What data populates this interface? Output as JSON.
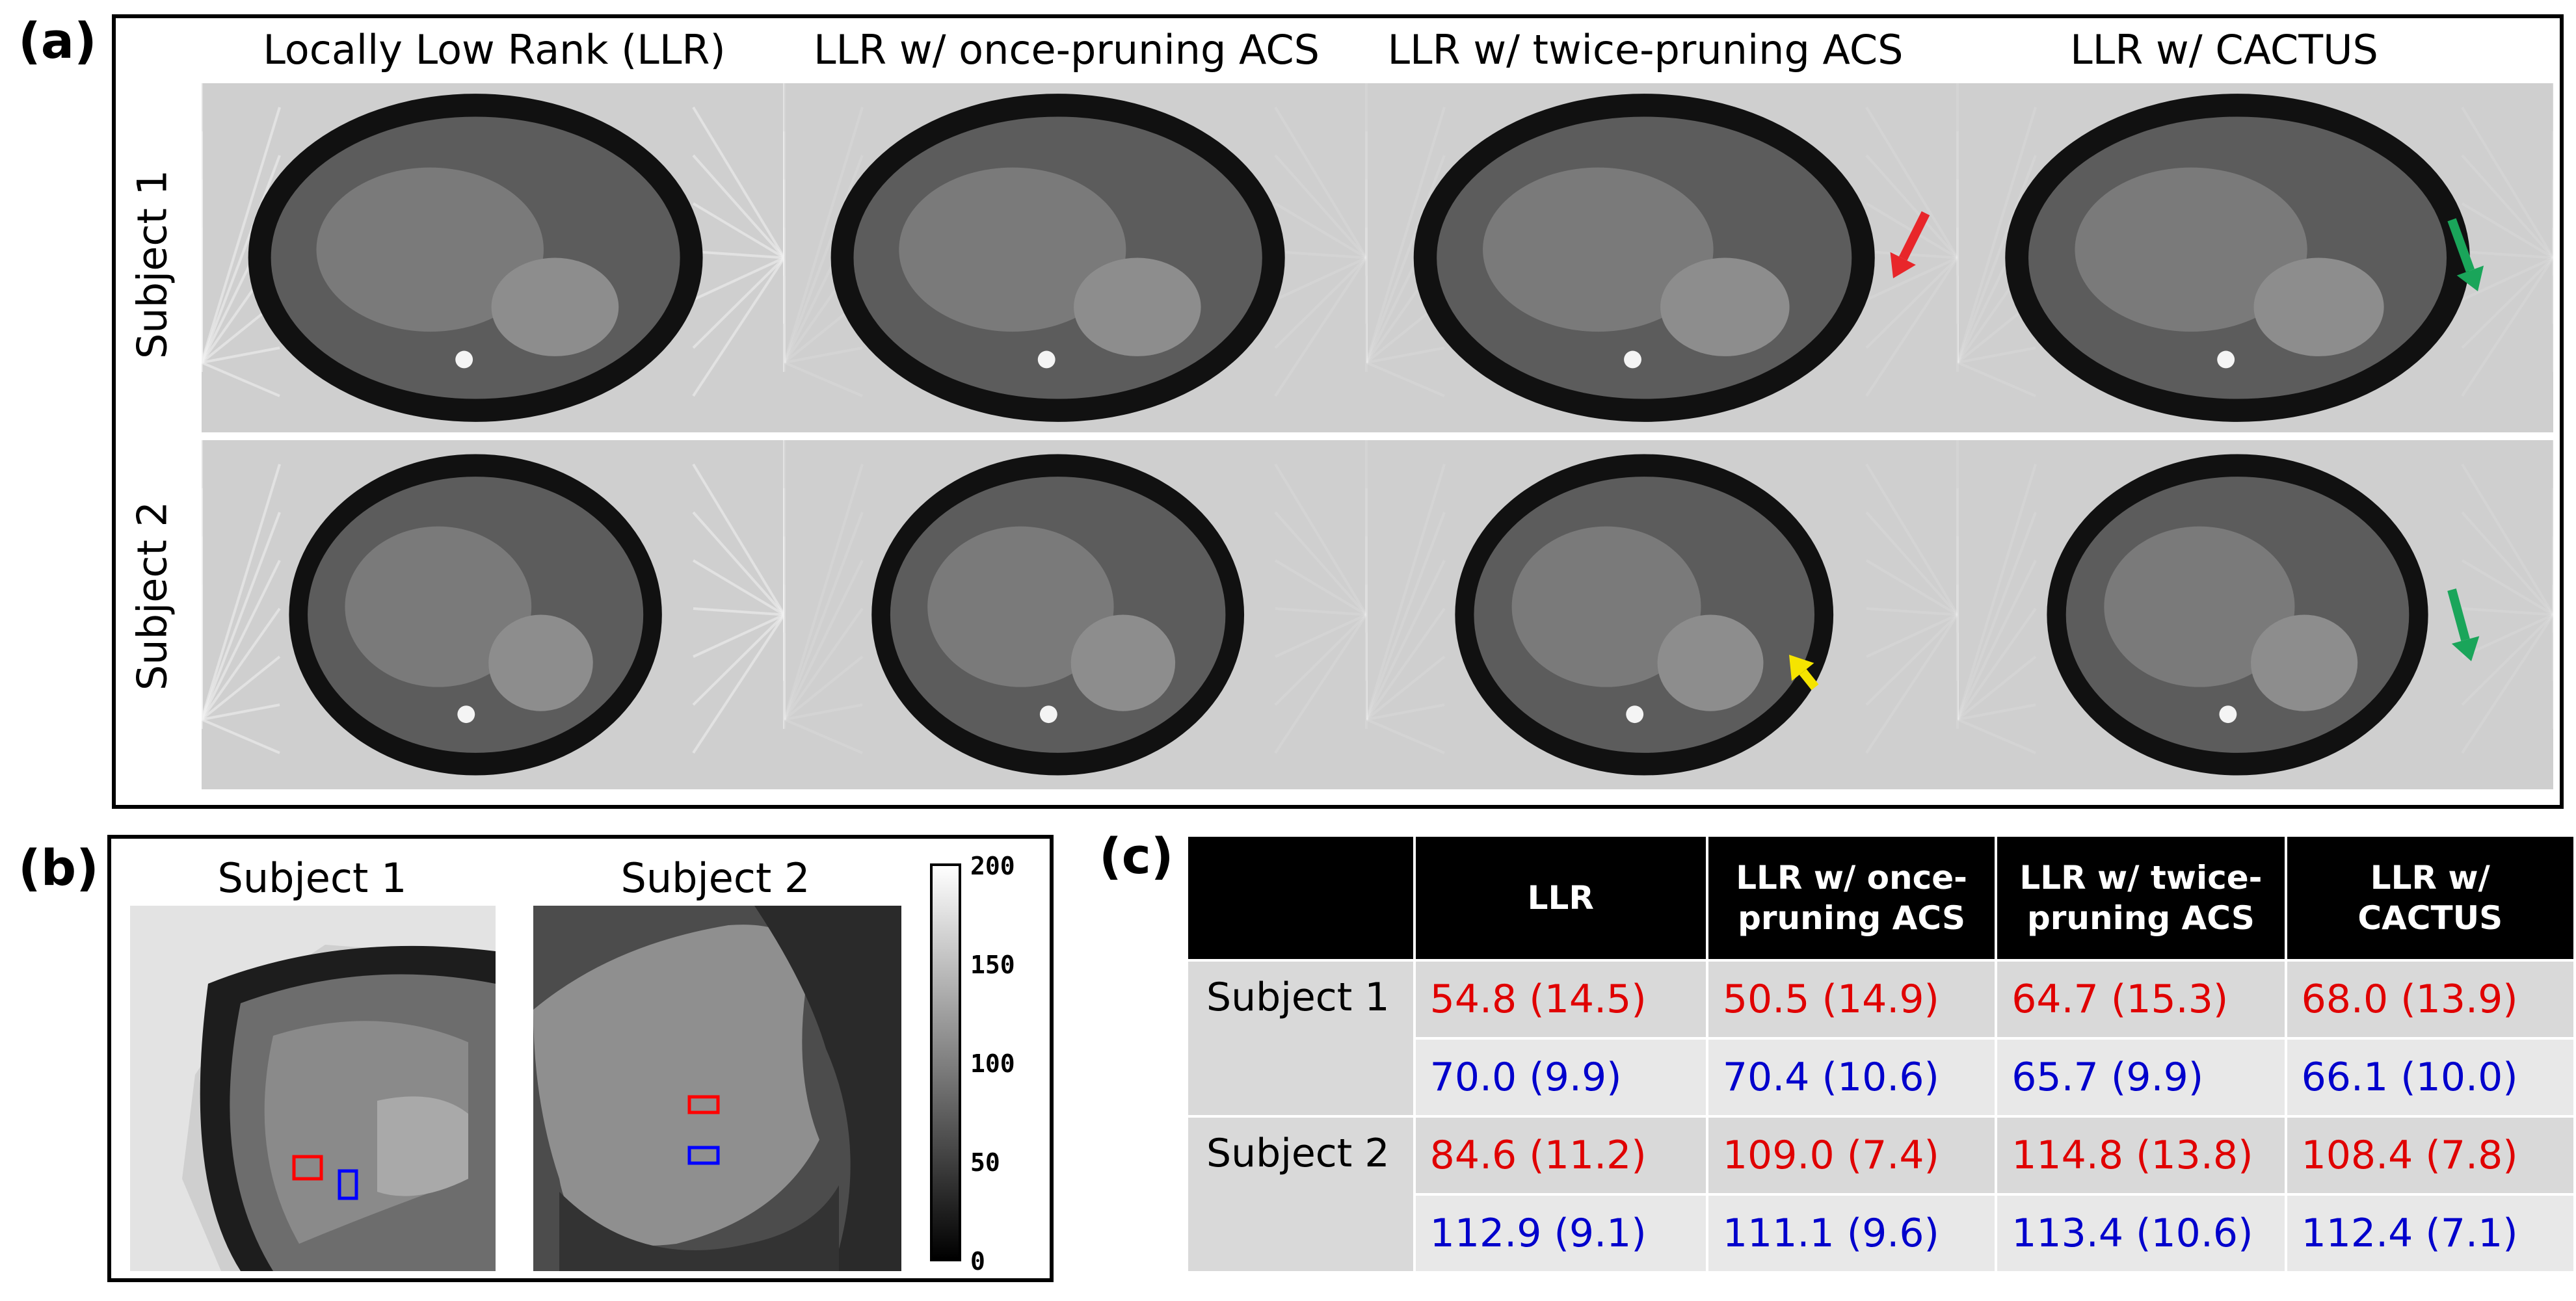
{
  "panel_labels": {
    "a": "(a)",
    "b": "(b)",
    "c": "(c)"
  },
  "panel_a": {
    "columns": [
      "Locally Low Rank (LLR)",
      "LLR w/ once-pruning ACS",
      "LLR w/ twice-pruning ACS",
      "LLR w/ CACTUS"
    ],
    "rows": [
      "Subject 1",
      "Subject 2"
    ],
    "arrow_colors": {
      "red": "#e8262a",
      "green": "#1aa55a",
      "yellow": "#f5e400"
    }
  },
  "panel_b": {
    "titles": [
      "Subject 1",
      "Subject 2"
    ],
    "colorbar_ticks": [
      "200",
      "150",
      "100",
      "50",
      "0"
    ],
    "roi_colors": {
      "red": "#ff0000",
      "blue": "#0000ff"
    }
  },
  "panel_c": {
    "headers": [
      "",
      "LLR",
      "LLR w/ once-\npruning ACS",
      "LLR w/ twice-\npruning ACS",
      "LLR  w/\nCACTUS"
    ],
    "rows": [
      {
        "subject": "Subject 1",
        "red": [
          "54.8 (14.5)",
          "50.5 (14.9)",
          "64.7 (15.3)",
          "68.0 (13.9)"
        ],
        "blue": [
          "70.0 (9.9)",
          "70.4 (10.6)",
          "65.7 (9.9)",
          "66.1 (10.0)"
        ]
      },
      {
        "subject": "Subject 2",
        "red": [
          "84.6 (11.2)",
          "109.0 (7.4)",
          "114.8 (13.8)",
          "108.4 (7.8)"
        ],
        "blue": [
          "112.9 (9.1)",
          "111.1 (9.6)",
          "113.4 (10.6)",
          "112.4 (7.1)"
        ]
      }
    ]
  }
}
